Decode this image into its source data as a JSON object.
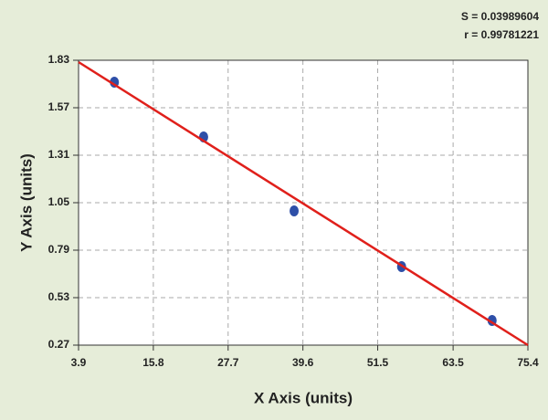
{
  "chart_data": {
    "type": "scatter",
    "annotations": [
      "S = 0.03989604",
      "r = 0.99781221"
    ],
    "xlabel": "X Axis (units)",
    "ylabel": "Y Axis (units)",
    "xlim": [
      3.9,
      75.4
    ],
    "xticks": [
      3.9,
      15.8,
      27.7,
      39.6,
      51.5,
      63.5,
      75.4
    ],
    "ylim": [
      0.27,
      1.83
    ],
    "yticks": [
      0.27,
      0.53,
      0.79,
      1.05,
      1.31,
      1.57,
      1.83
    ],
    "grid": true,
    "series": [
      {
        "mode": "markers",
        "color": "#2e4fa8",
        "x": [
          9.6,
          23.8,
          38.2,
          55.3,
          69.7
        ],
        "values": [
          1.71,
          1.41,
          1.005,
          0.7,
          0.405
        ]
      },
      {
        "mode": "line",
        "color": "#e0201b",
        "x": [
          3.9,
          75.4
        ],
        "values": [
          1.82,
          0.27
        ]
      }
    ]
  }
}
